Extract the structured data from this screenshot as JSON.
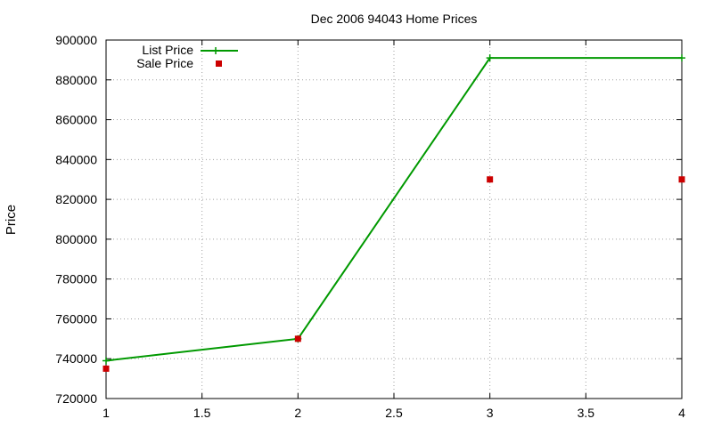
{
  "chart_data": {
    "type": "line",
    "title": "Dec 2006 94043 Home Prices",
    "xlabel": "",
    "ylabel": "Price",
    "xlim": [
      1,
      4
    ],
    "ylim": [
      720000,
      900000
    ],
    "xticks": [
      1,
      1.5,
      2,
      2.5,
      3,
      3.5,
      4
    ],
    "xtick_labels": [
      "1",
      "1.5",
      "2",
      "2.5",
      "3",
      "3.5",
      "4"
    ],
    "yticks": [
      720000,
      740000,
      760000,
      780000,
      800000,
      820000,
      840000,
      860000,
      880000,
      900000
    ],
    "ytick_labels": [
      "720000",
      "740000",
      "760000",
      "780000",
      "800000",
      "820000",
      "840000",
      "860000",
      "880000",
      "900000"
    ],
    "grid": true,
    "legend_position": "top-left",
    "series": [
      {
        "name": "List Price",
        "style": "lines+crosses",
        "color": "#009900",
        "x": [
          1,
          2,
          3,
          4
        ],
        "y": [
          739000,
          750000,
          891000,
          891000
        ]
      },
      {
        "name": "Sale Price",
        "style": "squares",
        "color": "#cc0000",
        "x": [
          1,
          2,
          3,
          4
        ],
        "y": [
          735000,
          750000,
          830000,
          830000
        ]
      }
    ]
  }
}
